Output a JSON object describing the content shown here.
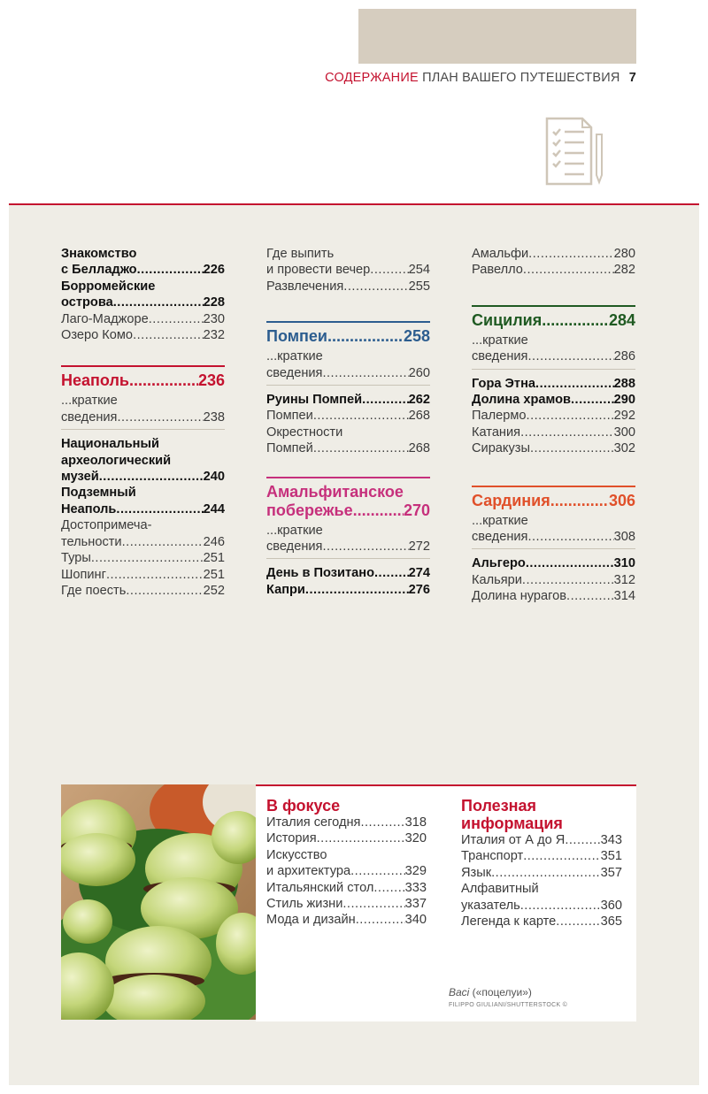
{
  "header": {
    "section": "СОДЕРЖАНИЕ",
    "subtitle": "ПЛАН ВАШЕГО ПУТЕШЕСТВИЯ",
    "page": "7"
  },
  "colors": {
    "accent_red": "#c4122f",
    "blue": "#2c5d8f",
    "pink": "#c6307c",
    "green": "#1f5a22",
    "orange": "#e0502a",
    "tan": "#d6cdbf",
    "panel": "#efede6"
  },
  "icon": "checklist-document-icon",
  "col1": {
    "l1": {
      "t": "Знакомство",
      "n": ""
    },
    "l2": {
      "t": "с Белладжо",
      "n": "226"
    },
    "l3": {
      "t": "Борромейские",
      "n": ""
    },
    "l4": {
      "t": "острова",
      "n": "228"
    },
    "l5": {
      "t": "Лаго-Маджоре",
      "n": "230"
    },
    "l6": {
      "t": "Озеро Комо",
      "n": "232"
    },
    "sec": {
      "t": "Неаполь",
      "n": "236"
    },
    "s1": "...краткие",
    "s2": {
      "t": "сведения",
      "n": "238"
    },
    "b1": "Национальный",
    "b2": "археологический",
    "b3": {
      "t": "музей",
      "n": "240"
    },
    "b4": "Подземный",
    "b5": {
      "t": "Неаполь",
      "n": "244"
    },
    "p1": "Достопримеча-",
    "p2": {
      "t": "тельности",
      "n": "246"
    },
    "p3": {
      "t": "Туры",
      "n": "251"
    },
    "p4": {
      "t": "Шопинг",
      "n": "251"
    },
    "p5": {
      "t": "Где поесть",
      "n": "252"
    }
  },
  "col2": {
    "l1": "Где выпить",
    "l2": {
      "t": "и провести вечер",
      "n": "254"
    },
    "l3": {
      "t": "Развлечения",
      "n": "255"
    },
    "sec1": {
      "t": "Помпеи",
      "n": "258"
    },
    "s1": "...краткие",
    "s2": {
      "t": "сведения",
      "n": "260"
    },
    "b1": {
      "t": "Руины Помпей",
      "n": "262"
    },
    "p1": {
      "t": "Помпеи",
      "n": "268"
    },
    "p2": "Окрестности",
    "p3": {
      "t": "Помпей",
      "n": "268"
    },
    "sec2a": "Амальфитанское",
    "sec2b": {
      "t": "побережье",
      "n": "270"
    },
    "s3": "...краткие",
    "s4": {
      "t": "сведения",
      "n": "272"
    },
    "b2": {
      "t": "День в Позитано",
      "n": "274"
    },
    "b3": {
      "t": "Капри",
      "n": "276"
    }
  },
  "col3": {
    "l1": {
      "t": "Амальфи",
      "n": "280"
    },
    "l2": {
      "t": "Равелло",
      "n": "282"
    },
    "sec1": {
      "t": "Сицилия",
      "n": "284"
    },
    "s1": "...краткие",
    "s2": {
      "t": "сведения",
      "n": "286"
    },
    "b1": {
      "t": "Гора Этна",
      "n": "288"
    },
    "b2": {
      "t": "Долина храмов",
      "n": "290"
    },
    "p1": {
      "t": "Палермо",
      "n": "292"
    },
    "p2": {
      "t": "Катания",
      "n": "300"
    },
    "p3": {
      "t": "Сиракузы",
      "n": "302"
    },
    "sec2": {
      "t": "Сардиния",
      "n": "306"
    },
    "s3": "...краткие",
    "s4": {
      "t": "сведения",
      "n": "308"
    },
    "b3": {
      "t": "Альгеро",
      "n": "310"
    },
    "p4": {
      "t": "Кальяри",
      "n": "312"
    },
    "p5": {
      "t": "Долина нурагов",
      "n": "314"
    }
  },
  "focus": {
    "title": "В фокусе",
    "i1": {
      "t": "Италия сегодня",
      "n": "318"
    },
    "i2": {
      "t": "История",
      "n": "320"
    },
    "i3": "Искусство",
    "i4": {
      "t": "и архитектура",
      "n": "329"
    },
    "i5": {
      "t": "Итальянский стол",
      "n": "333"
    },
    "i6": {
      "t": "Стиль жизни",
      "n": "337"
    },
    "i7": {
      "t": "Мода и дизайн",
      "n": "340"
    }
  },
  "info": {
    "title1": "Полезная",
    "title2": "информация",
    "i1": {
      "t": "Италия от А до Я",
      "n": "343"
    },
    "i2": {
      "t": "Транспорт",
      "n": "351"
    },
    "i3": {
      "t": "Язык",
      "n": "357"
    },
    "i4": "Алфавитный",
    "i5": {
      "t": "указатель",
      "n": "360"
    },
    "i6": {
      "t": "Легенда к карте",
      "n": "365"
    }
  },
  "caption": {
    "italic": "Baci",
    "rest": " («поцелуи»)",
    "credit": "FILIPPO GIULIANI/SHUTTERSTOCK ©"
  }
}
